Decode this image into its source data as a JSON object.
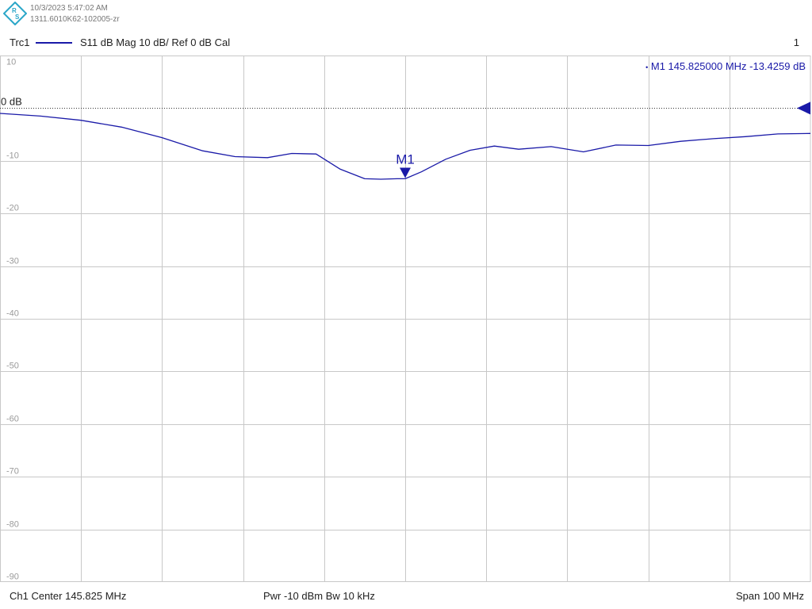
{
  "header": {
    "timestamp": "10/3/2023 5:47:02 AM",
    "instrument_id": "1311.6010K62-102005-zr",
    "logo_letters": "R&S",
    "logo_color": "#2aa6c8"
  },
  "trace_info": {
    "name": "Trc1",
    "measurement": "S11  dB Mag  10 dB/ Ref 0 dB  Cal",
    "channel_number": "1",
    "trace_color": "#1a1aa8"
  },
  "footer": {
    "center": "Ch1  Center  145.825 MHz",
    "power_bw": "Pwr  -10 dBm  Bw  10 kHz",
    "span": "Span  100 MHz"
  },
  "chart_data": {
    "type": "line",
    "title": "",
    "xlabel": "",
    "ylabel": "",
    "x_unit": "MHz",
    "xlim": [
      95.825,
      195.825
    ],
    "ylim": [
      -90,
      10
    ],
    "x_divisions": 10,
    "yticks": [
      10,
      0,
      -10,
      -20,
      -30,
      -40,
      -50,
      -60,
      -70,
      -80,
      -90
    ],
    "ytick_labels": [
      "10",
      "0 dB",
      "-10",
      "-20",
      "-30",
      "-40",
      "-50",
      "-60",
      "-70",
      "-80",
      "-90"
    ],
    "reference_level": 0,
    "grid": true,
    "series": [
      {
        "color": "#1a1aa8",
        "x": [
          95.825,
          100.825,
          105.825,
          110.825,
          115.825,
          120.825,
          124.825,
          128.825,
          131.825,
          134.825,
          137.825,
          140.825,
          142.825,
          144.825,
          145.825,
          147.825,
          150.825,
          153.825,
          156.825,
          159.825,
          163.825,
          167.825,
          171.825,
          175.825,
          179.825,
          183.825,
          187.825,
          191.825,
          195.825
        ],
        "y": [
          -1.0,
          -1.5,
          -2.3,
          -3.6,
          -5.6,
          -8.1,
          -9.2,
          -9.4,
          -8.6,
          -8.7,
          -11.6,
          -13.4,
          -13.5,
          -13.4,
          -13.4,
          -12.1,
          -9.7,
          -8.0,
          -7.2,
          -7.8,
          -7.3,
          -8.3,
          -7.0,
          -7.1,
          -6.3,
          -5.8,
          -5.4,
          -4.9,
          -4.8
        ]
      }
    ],
    "marker": {
      "label": "M1",
      "x": 145.825,
      "y": -13.4259,
      "readout_bullet": "•",
      "readout_name": "M1",
      "readout_freq": "145.825000  MHz",
      "readout_value": "-13.4259  dB"
    },
    "colors": {
      "grid": "#c8c8c8",
      "ref_line": "#333333",
      "tick_label": "#9a9a9a",
      "ref_label": "#222222",
      "marker": "#1a1aa8"
    }
  }
}
